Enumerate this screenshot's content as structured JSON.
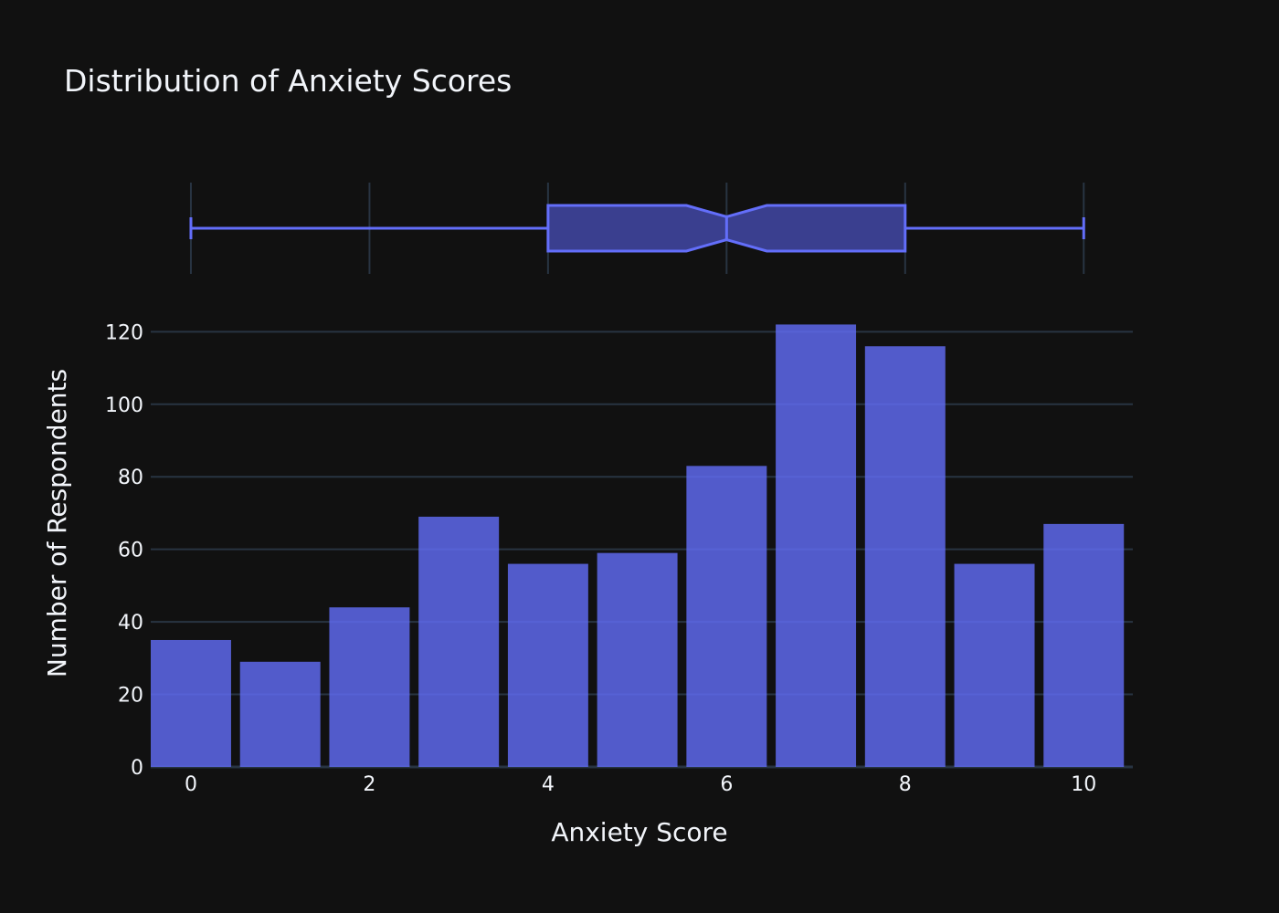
{
  "colors": {
    "background": "#111111",
    "grid": "#283442",
    "text": "#f2f5fa",
    "bar_fill": "#636efa",
    "box_fill": "#3a3f8f",
    "box_line": "#636efa"
  },
  "chart_data": {
    "type": "bar",
    "title": "Distribution of Anxiety Scores",
    "xlabel": "Anxiety Score",
    "ylabel": "Number of Respondents",
    "categories": [
      0,
      1,
      2,
      3,
      4,
      5,
      6,
      7,
      8,
      9,
      10
    ],
    "values": [
      35,
      29,
      44,
      69,
      56,
      59,
      83,
      122,
      116,
      56,
      67
    ],
    "xlim": [
      -0.45,
      10.55
    ],
    "ylim": [
      0,
      128.4
    ],
    "x_ticks": [
      0,
      2,
      4,
      6,
      8,
      10
    ],
    "y_ticks": [
      0,
      20,
      40,
      60,
      80,
      100,
      120
    ],
    "grid": true,
    "legend": "none",
    "marginal_box": {
      "notched": true,
      "min": 0,
      "q1": 4,
      "median": 6,
      "q3": 8,
      "max": 10,
      "notch_low": 5.55,
      "notch_high": 6.45
    }
  }
}
